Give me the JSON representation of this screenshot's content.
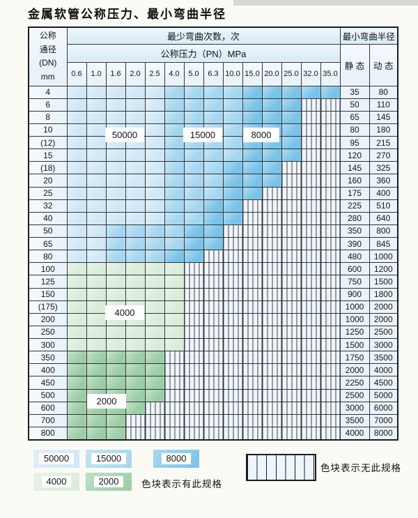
{
  "title": "金属软管公称压力、最小弯曲半径",
  "table": {
    "header": {
      "dn_lines": [
        "公称",
        "通径",
        "(DN)",
        "mm"
      ],
      "cycles": "最少弯曲次数，次",
      "radius": "最小弯曲半径",
      "pressure": "公称压力（PN）MPa",
      "static": "静 态",
      "dynamic": "动 态",
      "pressures": [
        "0.6",
        "1.0",
        "1.6",
        "2.0",
        "2.5",
        "4.0",
        "5.0",
        "6.3",
        "10.0",
        "15.0",
        "20.0",
        "25.0",
        "32.0",
        "35.0"
      ]
    },
    "zone_codes": {
      "L": "50000次",
      "M": "15000次",
      "D": "8000次",
      "g": "4000次",
      "G": "2000次",
      "x": "无此规格"
    },
    "overlays": [
      "50000",
      "15000",
      "8000",
      "4000",
      "2000"
    ],
    "rows": [
      {
        "dn": "4",
        "zones": "LLLLLMMMMDDDDD",
        "static": "35",
        "dynamic": "80"
      },
      {
        "dn": "6",
        "zones": "LLLLLMMMMDDDxx",
        "static": "50",
        "dynamic": "110"
      },
      {
        "dn": "8",
        "zones": "LLLLLMMMMDDDxx",
        "static": "65",
        "dynamic": "145"
      },
      {
        "dn": "10",
        "zones": "LLLLLMMMMDDDxx",
        "static": "80",
        "dynamic": "180"
      },
      {
        "dn": "(12)",
        "zones": "LLLLLMMMMDDDxx",
        "static": "95",
        "dynamic": "215"
      },
      {
        "dn": "15",
        "zones": "LLLLLMMMMDDDxx",
        "static": "120",
        "dynamic": "270"
      },
      {
        "dn": "(18)",
        "zones": "LLLLLMMMDDDxxx",
        "static": "145",
        "dynamic": "325"
      },
      {
        "dn": "20",
        "zones": "LLLLLMMMDDDxxx",
        "static": "160",
        "dynamic": "360"
      },
      {
        "dn": "25",
        "zones": "LLLLLMMMDDxxxx",
        "static": "175",
        "dynamic": "400"
      },
      {
        "dn": "32",
        "zones": "LLLLLMMDDxxxxx",
        "static": "225",
        "dynamic": "510"
      },
      {
        "dn": "40",
        "zones": "LLLLLMMDDxxxxx",
        "static": "280",
        "dynamic": "640"
      },
      {
        "dn": "50",
        "zones": "LLMMMMDDxxxxxx",
        "static": "350",
        "dynamic": "800"
      },
      {
        "dn": "65",
        "zones": "LLMMMMDDxxxxxx",
        "static": "390",
        "dynamic": "845"
      },
      {
        "dn": "80",
        "zones": "LLMMMDDxxxxxxx",
        "static": "480",
        "dynamic": "1000"
      },
      {
        "dn": "100",
        "zones": "ggggggxxxxxxxx",
        "static": "600",
        "dynamic": "1200"
      },
      {
        "dn": "125",
        "zones": "ggggggxxxxxxxx",
        "static": "750",
        "dynamic": "1500"
      },
      {
        "dn": "150",
        "zones": "ggggggxxxxxxxx",
        "static": "900",
        "dynamic": "1800"
      },
      {
        "dn": "(175)",
        "zones": "ggggggxxxxxxxx",
        "static": "1000",
        "dynamic": "2000"
      },
      {
        "dn": "200",
        "zones": "ggggggxxxxxxxx",
        "static": "1000",
        "dynamic": "2000"
      },
      {
        "dn": "250",
        "zones": "ggggggxxxxxxxx",
        "static": "1250",
        "dynamic": "2500"
      },
      {
        "dn": "300",
        "zones": "ggggggxxxxxxxx",
        "static": "1500",
        "dynamic": "3000"
      },
      {
        "dn": "350",
        "zones": "GGGGGxxxxxxxxx",
        "static": "1750",
        "dynamic": "3500"
      },
      {
        "dn": "400",
        "zones": "GGGGGxxxxxxxxx",
        "static": "2000",
        "dynamic": "4000"
      },
      {
        "dn": "450",
        "zones": "GGGGGxxxxxxxxx",
        "static": "2250",
        "dynamic": "4500"
      },
      {
        "dn": "500",
        "zones": "GGGGGxxxxxxxxx",
        "static": "2500",
        "dynamic": "5000"
      },
      {
        "dn": "600",
        "zones": "GGGGxxxxxxxxxx",
        "static": "3000",
        "dynamic": "6000"
      },
      {
        "dn": "700",
        "zones": "GGGxxxxxxxxxxx",
        "static": "3500",
        "dynamic": "7000"
      },
      {
        "dn": "800",
        "zones": "GGGxxxxxxxxxxx",
        "static": "4000",
        "dynamic": "8000"
      }
    ]
  },
  "legend": {
    "chips": [
      {
        "label": "50000",
        "zone": "L"
      },
      {
        "label": "15000",
        "zone": "M"
      },
      {
        "label": "8000",
        "zone": "D"
      },
      {
        "label": "4000",
        "zone": "g"
      },
      {
        "label": "2000",
        "zone": "G"
      }
    ],
    "has_spec_text": "色块表示有此规格",
    "no_spec_text": "色块表示无此规格"
  },
  "colors": {
    "cycle_50000": "#cfe7f7",
    "cycle_15000": "#a4d6f0",
    "cycle_8000": "#79c3e8",
    "cycle_4000": "#d9ecd9",
    "cycle_2000": "#9bcea6",
    "no_spec_bg": "#eef5fc",
    "grid_line": "#333333",
    "header_bg": "#dcedf8",
    "dn_col_bg": "#e7f2fa",
    "radius_col_bg": "#eaf3fb"
  }
}
